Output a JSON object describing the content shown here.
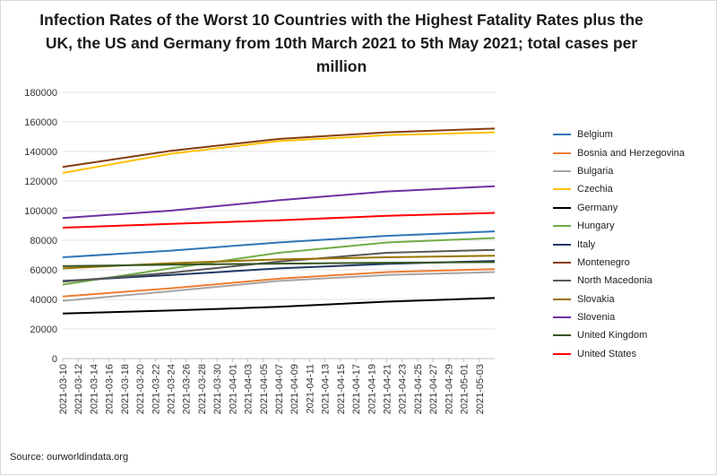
{
  "chart_data": {
    "type": "line",
    "title": "Infection Rates of the Worst 10 Countries with the Highest Fatality Rates plus the UK, the US and Germany from 10th March 2021 to 5th May 2021; total cases per million",
    "xlabel": "",
    "ylabel": "",
    "ylim": [
      0,
      180000
    ],
    "yticks": [
      "0",
      "20000",
      "40000",
      "60000",
      "80000",
      "100000",
      "120000",
      "140000",
      "160000",
      "180000"
    ],
    "x_start": "2021-03-10",
    "x_end": "2021-05-05",
    "xtick_labels": [
      "2021-03-10",
      "2021-03-12",
      "2021-03-14",
      "2021-03-16",
      "2021-03-18",
      "2021-03-20",
      "2021-03-22",
      "2021-03-24",
      "2021-03-26",
      "2021-03-28",
      "2021-03-30",
      "2021-04-01",
      "2021-04-03",
      "2021-04-05",
      "2021-04-07",
      "2021-04-09",
      "2021-04-11",
      "2021-04-13",
      "2021-04-15",
      "2021-04-17",
      "2021-04-19",
      "2021-04-21",
      "2021-04-23",
      "2021-04-25",
      "2021-04-27",
      "2021-04-29",
      "2021-05-01",
      "2021-05-03"
    ],
    "grid": "horizontal",
    "legend_position": "right",
    "series": [
      {
        "name": "Belgium",
        "color": "#2e75b6",
        "points": [
          [
            "2021-03-10",
            68500
          ],
          [
            "2021-03-24",
            73000
          ],
          [
            "2021-04-07",
            78500
          ],
          [
            "2021-04-21",
            83000
          ],
          [
            "2021-05-05",
            86000
          ]
        ]
      },
      {
        "name": "Bosnia and Herzegovina",
        "color": "#ed7d31",
        "points": [
          [
            "2021-03-10",
            42000
          ],
          [
            "2021-03-24",
            47500
          ],
          [
            "2021-04-07",
            54000
          ],
          [
            "2021-04-21",
            58500
          ],
          [
            "2021-05-05",
            60500
          ]
        ]
      },
      {
        "name": "Bulgaria",
        "color": "#a5a5a5",
        "points": [
          [
            "2021-03-10",
            39000
          ],
          [
            "2021-03-24",
            45500
          ],
          [
            "2021-04-07",
            52500
          ],
          [
            "2021-04-21",
            56500
          ],
          [
            "2021-05-05",
            58500
          ]
        ]
      },
      {
        "name": "Czechia",
        "color": "#ffc000",
        "points": [
          [
            "2021-03-10",
            125500
          ],
          [
            "2021-03-24",
            138500
          ],
          [
            "2021-04-07",
            147000
          ],
          [
            "2021-04-21",
            151000
          ],
          [
            "2021-05-05",
            153000
          ]
        ]
      },
      {
        "name": "Germany",
        "color": "#000000",
        "points": [
          [
            "2021-03-10",
            30500
          ],
          [
            "2021-03-24",
            32500
          ],
          [
            "2021-04-07",
            35000
          ],
          [
            "2021-04-21",
            38500
          ],
          [
            "2021-05-05",
            41000
          ]
        ]
      },
      {
        "name": "Hungary",
        "color": "#70ad47",
        "points": [
          [
            "2021-03-10",
            50000
          ],
          [
            "2021-03-24",
            61000
          ],
          [
            "2021-04-07",
            71500
          ],
          [
            "2021-04-21",
            78500
          ],
          [
            "2021-05-05",
            81500
          ]
        ]
      },
      {
        "name": "Italy",
        "color": "#203864",
        "points": [
          [
            "2021-03-10",
            52500
          ],
          [
            "2021-03-24",
            56500
          ],
          [
            "2021-04-07",
            61000
          ],
          [
            "2021-04-21",
            64000
          ],
          [
            "2021-05-05",
            66000
          ]
        ]
      },
      {
        "name": "Montenegro",
        "color": "#843c0c",
        "points": [
          [
            "2021-03-10",
            129500
          ],
          [
            "2021-03-24",
            140500
          ],
          [
            "2021-04-07",
            148500
          ],
          [
            "2021-04-21",
            153000
          ],
          [
            "2021-05-05",
            155500
          ]
        ]
      },
      {
        "name": "North Macedonia",
        "color": "#595959",
        "points": [
          [
            "2021-03-10",
            52000
          ],
          [
            "2021-03-24",
            58000
          ],
          [
            "2021-04-07",
            65500
          ],
          [
            "2021-04-21",
            71500
          ],
          [
            "2021-05-05",
            73500
          ]
        ]
      },
      {
        "name": "Slovakia",
        "color": "#997300",
        "points": [
          [
            "2021-03-10",
            61000
          ],
          [
            "2021-03-24",
            64500
          ],
          [
            "2021-04-07",
            67000
          ],
          [
            "2021-04-21",
            68500
          ],
          [
            "2021-05-05",
            69500
          ]
        ]
      },
      {
        "name": "Slovenia",
        "color": "#7030a0",
        "points": [
          [
            "2021-03-10",
            95000
          ],
          [
            "2021-03-24",
            100000
          ],
          [
            "2021-04-07",
            107000
          ],
          [
            "2021-04-21",
            113000
          ],
          [
            "2021-05-05",
            116500
          ]
        ]
      },
      {
        "name": "United Kingdom",
        "color": "#375623",
        "points": [
          [
            "2021-03-10",
            62500
          ],
          [
            "2021-03-24",
            63500
          ],
          [
            "2021-04-07",
            64200
          ],
          [
            "2021-04-21",
            64800
          ],
          [
            "2021-05-05",
            65200
          ]
        ]
      },
      {
        "name": "United States",
        "color": "#ff0000",
        "points": [
          [
            "2021-03-10",
            88500
          ],
          [
            "2021-03-24",
            91000
          ],
          [
            "2021-04-07",
            93500
          ],
          [
            "2021-04-21",
            96500
          ],
          [
            "2021-05-05",
            98500
          ]
        ]
      }
    ]
  },
  "source": "Source: ourworldindata.org"
}
